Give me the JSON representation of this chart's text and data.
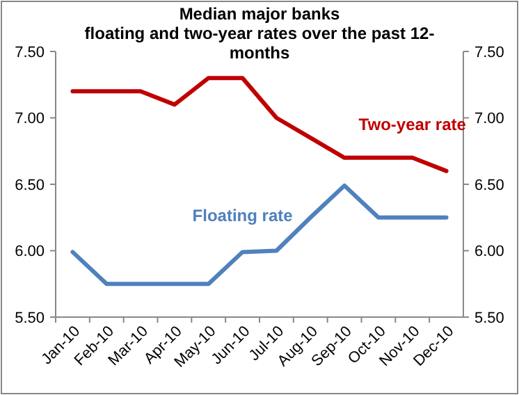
{
  "chart_data": {
    "type": "line",
    "title": "Median major banks\nfloating and two-year rates over the past 12-\nmonths",
    "categories": [
      "Jan-10",
      "Feb-10",
      "Mar-10",
      "Apr-10",
      "May-10",
      "Jun-10",
      "Jul-10",
      "Aug-10",
      "Sep-10",
      "Oct-10",
      "Nov-10",
      "Dec-10"
    ],
    "series": [
      {
        "name": "Two-year rate",
        "color": "#c00000",
        "values": [
          7.2,
          7.2,
          7.2,
          7.1,
          7.3,
          7.3,
          7.0,
          6.85,
          6.7,
          6.7,
          6.7,
          6.6
        ]
      },
      {
        "name": "Floating rate",
        "color": "#4f81bd",
        "values": [
          5.99,
          5.75,
          5.75,
          5.75,
          5.75,
          5.99,
          6.0,
          6.25,
          6.49,
          6.25,
          6.25,
          6.25
        ]
      }
    ],
    "ylim": [
      5.5,
      7.5
    ],
    "yticks": [
      {
        "value": 5.5,
        "label": "5.50"
      },
      {
        "value": 6,
        "label": "6.00"
      },
      {
        "value": 6.5,
        "label": "6.50"
      },
      {
        "value": 7,
        "label": "7.00"
      },
      {
        "value": 7.5,
        "label": "7.50"
      }
    ],
    "y2lim": [
      5.5,
      7.5
    ],
    "y2ticks": [
      {
        "value": 5.5,
        "label": "5.50"
      },
      {
        "value": 6,
        "label": "6.00"
      },
      {
        "value": 6.5,
        "label": "6.50"
      },
      {
        "value": 7,
        "label": "7.00"
      },
      {
        "value": 7.5,
        "label": "7.50"
      }
    ],
    "grid": false,
    "marker": "none",
    "line_style": "solid"
  }
}
